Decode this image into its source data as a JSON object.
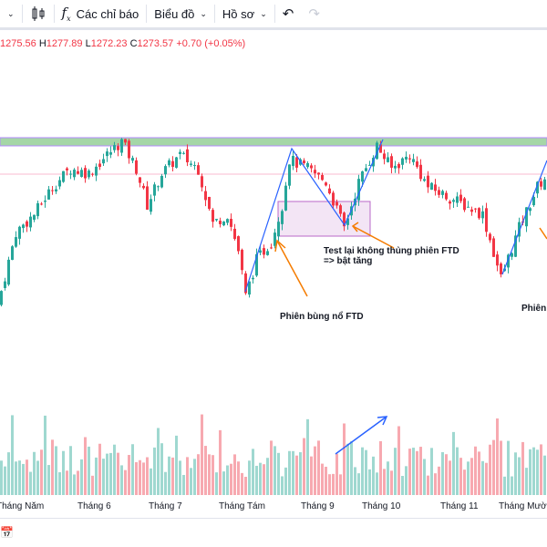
{
  "toolbar": {
    "chevron": "chevron-down-icon",
    "indicators_label": "Các chỉ báo",
    "chart_label": "Biểu đồ",
    "profile_label": "Hồ sơ"
  },
  "ohlc": {
    "o": "1275.56",
    "h_key": "H",
    "h": "1277.89",
    "l_key": "L",
    "l": "1272.23",
    "c_key": "C",
    "c": "1273.57",
    "change": "+0.70 (+0.05%)"
  },
  "annotations": {
    "ftd": "Phiên bùng nổ FTD",
    "test_line1": "Test lại không thủng phiên FTD",
    "test_line2": "=> bật tăng",
    "right_cut": "Phiên"
  },
  "x_axis": [
    "Tháng Năm",
    "Tháng 6",
    "Tháng 7",
    "Tháng Tám",
    "Tháng 9",
    "Tháng 10",
    "Tháng 11",
    "Tháng Mười"
  ],
  "colors": {
    "up": "#26a69a",
    "down": "#f23645",
    "resistance": "#a5d6a7",
    "box": "#e1bee7",
    "trend": "#2962ff",
    "arrow": "#f57c00"
  },
  "chart_data": {
    "type": "candlestick",
    "keypoints": [
      [
        0,
        1182
      ],
      [
        5,
        1230
      ],
      [
        10,
        1242
      ],
      [
        15,
        1260
      ],
      [
        20,
        1272
      ],
      [
        25,
        1269
      ],
      [
        30,
        1281
      ],
      [
        34,
        1290
      ],
      [
        38,
        1272
      ],
      [
        41,
        1248
      ],
      [
        45,
        1269
      ],
      [
        50,
        1281
      ],
      [
        55,
        1272
      ],
      [
        59,
        1236
      ],
      [
        63,
        1242
      ],
      [
        66,
        1218
      ],
      [
        68,
        1188
      ],
      [
        71,
        1212
      ],
      [
        75,
        1224
      ],
      [
        78,
        1248
      ],
      [
        80,
        1278
      ],
      [
        85,
        1272
      ],
      [
        90,
        1263
      ],
      [
        95,
        1233
      ],
      [
        99,
        1263
      ],
      [
        104,
        1287
      ],
      [
        108,
        1272
      ],
      [
        113,
        1281
      ],
      [
        118,
        1260
      ],
      [
        123,
        1254
      ],
      [
        128,
        1248
      ],
      [
        133,
        1242
      ],
      [
        138,
        1200
      ],
      [
        143,
        1233
      ],
      [
        148,
        1260
      ],
      [
        150,
        1266
      ]
    ]
  }
}
